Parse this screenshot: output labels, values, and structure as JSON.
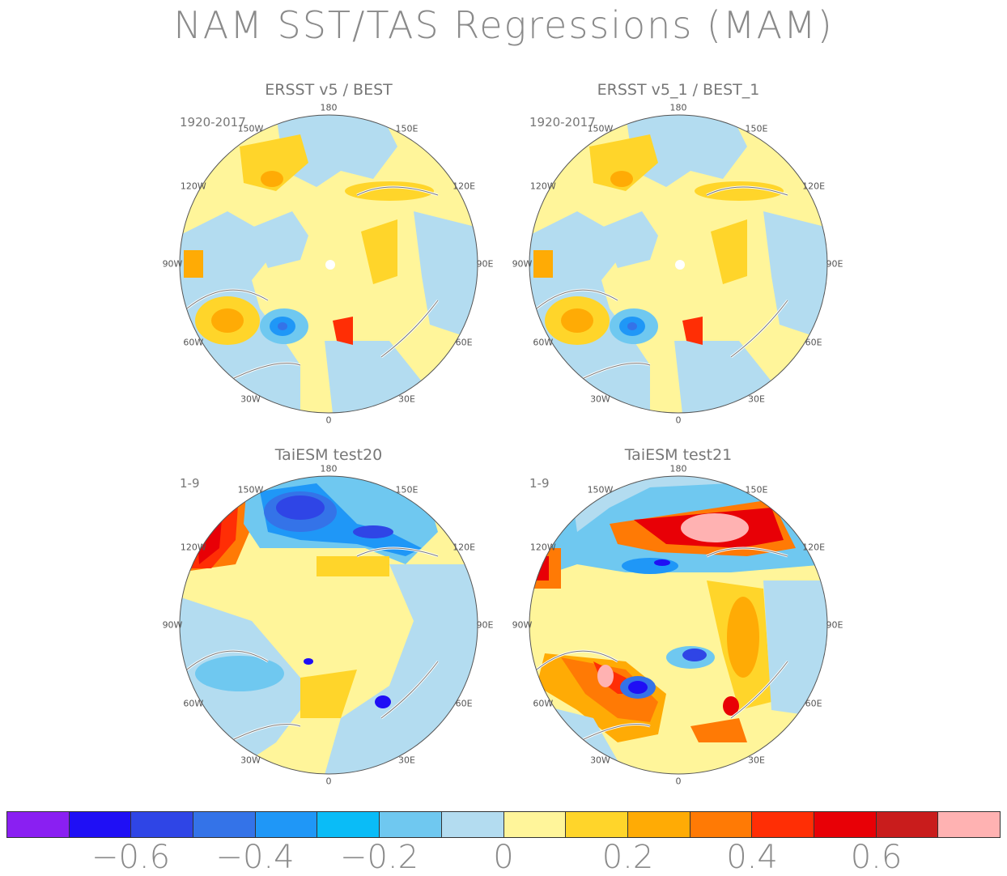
{
  "title": "NAM SST/TAS Regressions (MAM)",
  "panels": [
    {
      "title": "ERSST v5 / BEST",
      "period": "1920-2017"
    },
    {
      "title": "ERSST v5_1 / BEST_1",
      "period": "1920-2017"
    },
    {
      "title": "TaiESM test20",
      "period": "1-9"
    },
    {
      "title": "TaiESM test21",
      "period": "1-9"
    }
  ],
  "lon_labels": [
    "180",
    "150E",
    "120E",
    "90E",
    "60E",
    "30E",
    "0",
    "30W",
    "60W",
    "90W",
    "120W",
    "150W"
  ],
  "colorbar": {
    "colors": [
      "#8a1ff2",
      "#1f0ff5",
      "#2f45e6",
      "#3473e8",
      "#1f97f7",
      "#0abcf7",
      "#6fc8f0",
      "#b3dcf0",
      "#fff59a",
      "#ffd52a",
      "#ffab05",
      "#ff7a05",
      "#ff2e05",
      "#e80006",
      "#c91c1c",
      "#ffb2b2"
    ],
    "tick_labels": [
      "−0.6",
      "−0.4",
      "−0.2",
      "0",
      "0.2",
      "0.4",
      "0.6"
    ]
  }
}
